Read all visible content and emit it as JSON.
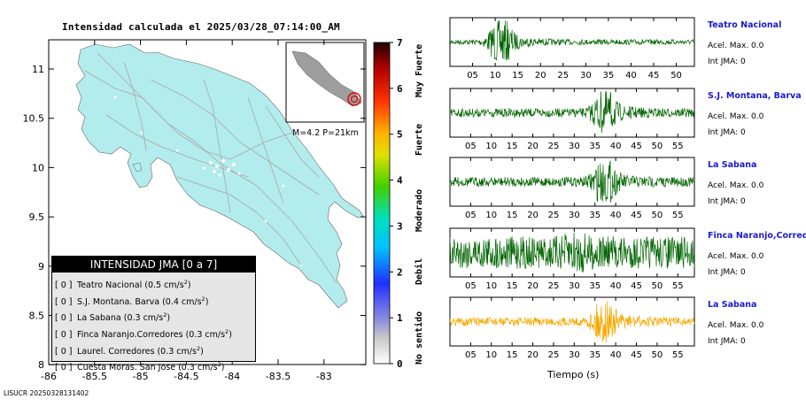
{
  "map": {
    "title": "Intensidad calculada el 2025/03/28_07:14:00_AM",
    "y_ticks": [
      "11",
      "10.5",
      "10",
      "9.5",
      "9",
      "8.5",
      "8"
    ],
    "x_ticks": [
      "-86",
      "-85.5",
      "-85",
      "-84.5",
      "-84",
      "-83.5",
      "-83"
    ],
    "inset_label": "M=4.2 P=21km",
    "land_color": "#b3ecec",
    "road_color": "#a7a7a7"
  },
  "colorbar": {
    "ticks": [
      "0",
      "1",
      "2",
      "3",
      "4",
      "5",
      "6",
      "7"
    ],
    "labels": [
      "No sentido",
      "Debil",
      "Moderado",
      "Fuerte",
      "Muy Fuerte"
    ]
  },
  "legend": {
    "title": "INTENSIDAD JMA [0 a 7]",
    "entries": [
      {
        "box": "[ 0 ]",
        "name": "Teatro Nacional",
        "acc": "(0.5 cm/s",
        "sup": "2",
        "end": ")"
      },
      {
        "box": "[ 0 ]",
        "name": "S.J. Montana. Barva",
        "acc": "(0.4 cm/s",
        "sup": "2",
        "end": ")"
      },
      {
        "box": "[ 0 ]",
        "name": "La Sabana",
        "acc": "(0.3 cm/s",
        "sup": "2",
        "end": ")"
      },
      {
        "box": "[ 0 ]",
        "name": "Finca Naranjo.Corredores",
        "acc": "(0.3 cm/s",
        "sup": "2",
        "end": ")"
      },
      {
        "box": "[ 0 ]",
        "name": "Laurel. Corredores",
        "acc": "(0.3 cm/s",
        "sup": "2",
        "end": ")"
      },
      {
        "box": "[ 0 ]",
        "name": "Cuesta Moras. San Jose",
        "acc": "(0.3 cm/s",
        "sup": "2",
        "end": ")"
      }
    ]
  },
  "footer": "LISUCR 20250328131402",
  "stations": [
    {
      "name": "Teatro Nacional",
      "acc": "Acel. Max. 0.0",
      "int": "Int JMA: 0",
      "color": "#006400",
      "ticks": [
        "05",
        "10",
        "15",
        "20",
        "25",
        "30",
        "35",
        "40",
        "45",
        "50"
      ],
      "tmax": 54,
      "burst": 11,
      "noise": 0.12,
      "burst_amp": 1.0
    },
    {
      "name": "S.J. Montana, Barva",
      "acc": "Acel. Max. 0.0",
      "int": "Int JMA: 0",
      "color": "#006400",
      "ticks": [
        "05",
        "10",
        "15",
        "20",
        "25",
        "30",
        "35",
        "40",
        "45",
        "50",
        "55"
      ],
      "tmax": 59,
      "burst": 37,
      "noise": 0.2,
      "burst_amp": 1.0
    },
    {
      "name": "La Sabana",
      "acc": "Acel. Max. 0.0",
      "int": "Int JMA: 0",
      "color": "#006400",
      "ticks": [
        "05",
        "10",
        "15",
        "20",
        "25",
        "30",
        "35",
        "40",
        "45",
        "50",
        "55"
      ],
      "tmax": 59,
      "burst": 37,
      "noise": 0.22,
      "burst_amp": 1.0
    },
    {
      "name": "Finca Naranjo,Corredor",
      "acc": "Acel. Max. 0.0",
      "int": "Int JMA: 0",
      "color": "#006400",
      "ticks": [
        "05",
        "10",
        "15",
        "20",
        "25",
        "30",
        "35",
        "40",
        "45",
        "50",
        "55"
      ],
      "tmax": 59,
      "burst": 30,
      "noise": 0.75,
      "burst_amp": 0.3
    },
    {
      "name": "La Sabana",
      "acc": "Acel. Max. 0.0",
      "int": "Int JMA: 0",
      "color": "#f5a800",
      "ticks": [
        "05",
        "10",
        "15",
        "20",
        "25",
        "30",
        "35",
        "40",
        "45",
        "50",
        "55"
      ],
      "tmax": 59,
      "burst": 37,
      "noise": 0.2,
      "burst_amp": 1.0
    }
  ],
  "xlabel": "Tiempo (s)"
}
